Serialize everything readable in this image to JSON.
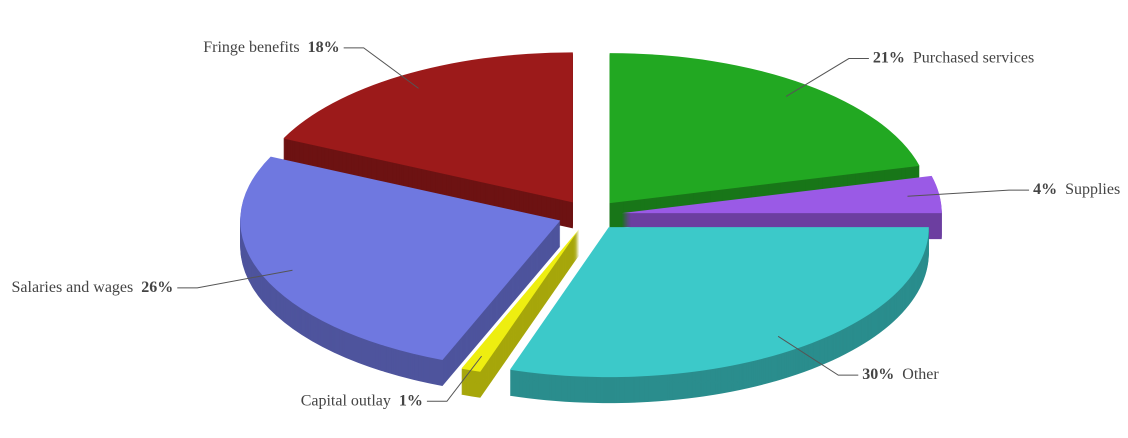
{
  "chart_data": {
    "type": "pie",
    "categories": [
      "Purchased services",
      "Supplies",
      "Other",
      "Capital outlay",
      "Salaries and wages",
      "Fringe benefits"
    ],
    "values": [
      21,
      4,
      30,
      1,
      26,
      18
    ],
    "value_labels": [
      "21%",
      "4%",
      "30%",
      "1%",
      "26%",
      "18%"
    ],
    "colors": [
      "#22a822",
      "#9a5ae6",
      "#3cc9c9",
      "#eeee10",
      "#6f78e0",
      "#9c1a1a"
    ]
  }
}
